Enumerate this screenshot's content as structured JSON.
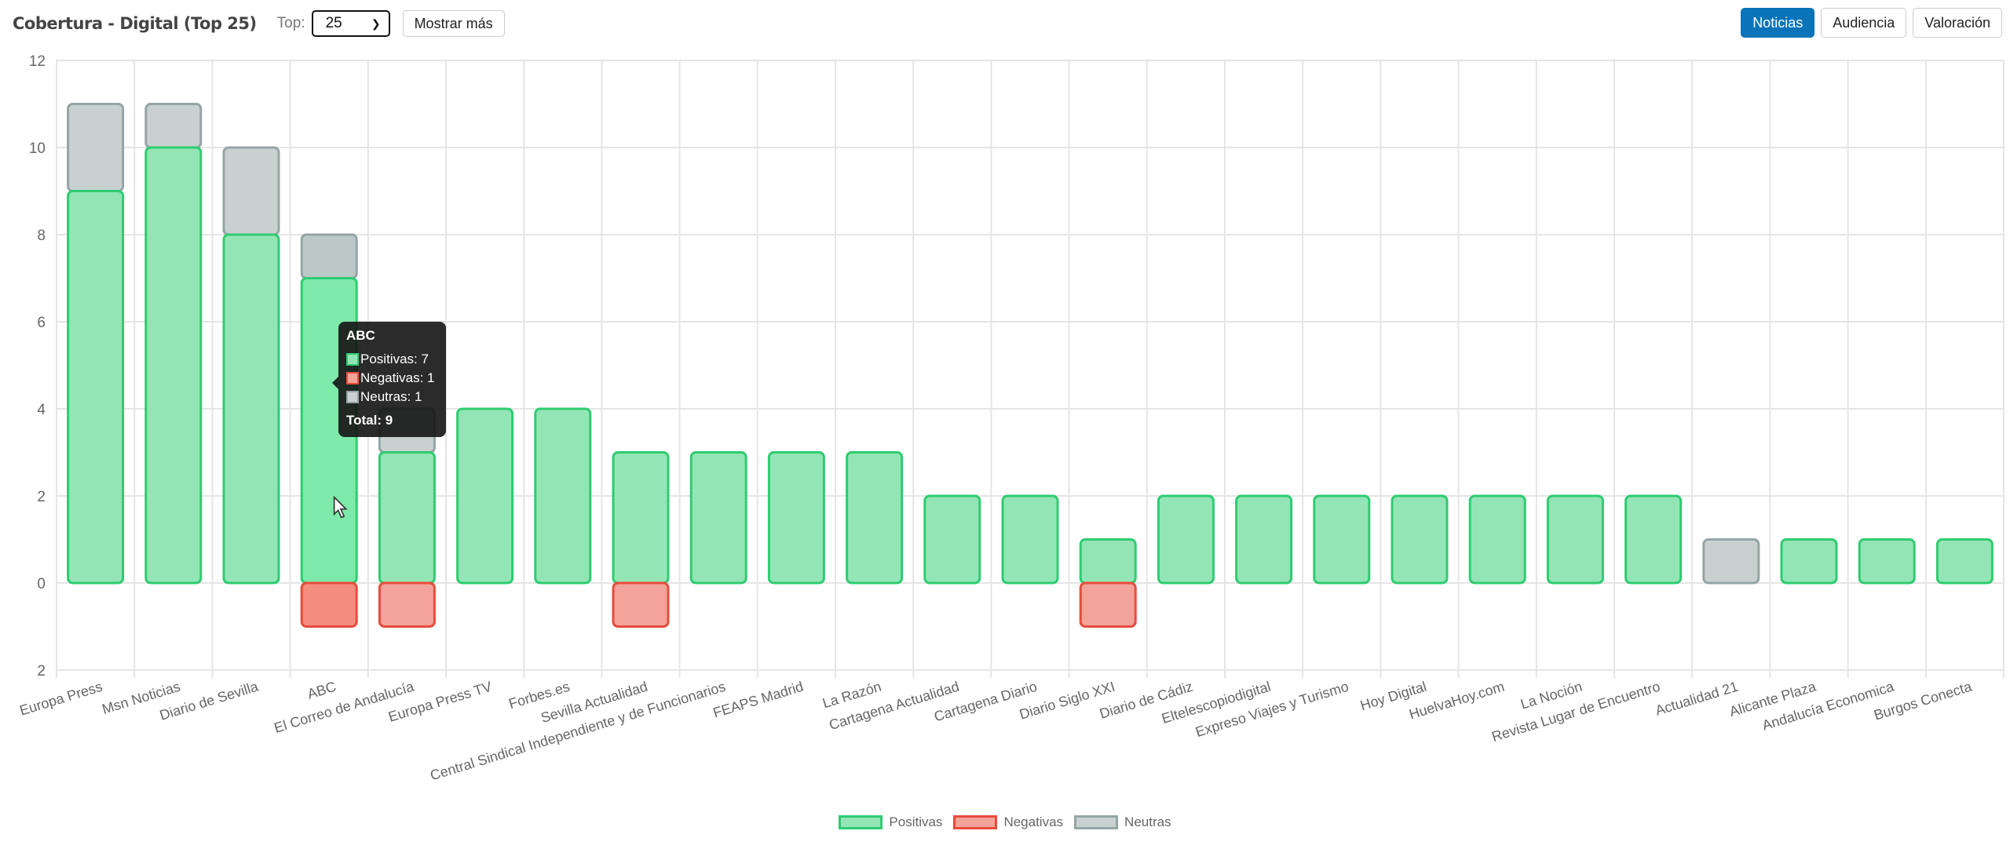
{
  "header": {
    "title": "Cobertura - Digital (Top 25)",
    "top_label": "Top:",
    "top_value": "25",
    "show_more": "Mostrar más"
  },
  "view_buttons": [
    {
      "label": "Noticias",
      "active": true
    },
    {
      "label": "Audiencia",
      "active": false
    },
    {
      "label": "Valoración",
      "active": false
    }
  ],
  "colors": {
    "pos_fill": "#94e5b5",
    "pos_stroke": "#2ecc71",
    "neg_fill": "#f2a39a",
    "neg_stroke": "#e74c3c",
    "neu_fill": "#c9d1d0",
    "neu_stroke": "#95a5a6"
  },
  "chart_data": {
    "type": "bar",
    "stacked": true,
    "title": "Cobertura - Digital (Top 25)",
    "ylim": [
      -2,
      12
    ],
    "yticks": [
      {
        "v": 12,
        "label": "12"
      },
      {
        "v": 10,
        "label": "10"
      },
      {
        "v": 8,
        "label": "8"
      },
      {
        "v": 6,
        "label": "6"
      },
      {
        "v": 4,
        "label": "4"
      },
      {
        "v": 2,
        "label": "2"
      },
      {
        "v": 0,
        "label": "0"
      },
      {
        "v": -2,
        "label": "2"
      }
    ],
    "grid": true,
    "legend_position": "bottom",
    "categories": [
      "Europa Press",
      "Msn Noticias",
      "Diario de Sevilla",
      "ABC",
      "El Correo de Andalucía",
      "Europa Press TV",
      "Forbes.es",
      "Sevilla Actualidad",
      "Central Sindical Independiente y de Funcionarios",
      "FEAPS Madrid",
      "La Razón",
      "Cartagena Actualidad",
      "Cartagena Diario",
      "Diario Siglo XXI",
      "Diario de Cádiz",
      "Eltelescopiodigital",
      "Expreso Viajes y Turismo",
      "Hoy Digital",
      "HuelvaHoy.com",
      "La Noción",
      "Revista Lugar de Encuentro",
      "Actualidad 21",
      "Alicante Plaza",
      "Andalucía Economica",
      "Burgos Conecta"
    ],
    "series": [
      {
        "name": "Positivas",
        "values": [
          9,
          10,
          8,
          7,
          3,
          4,
          4,
          3,
          3,
          3,
          3,
          2,
          2,
          1,
          2,
          2,
          2,
          2,
          2,
          2,
          2,
          0,
          1,
          1,
          1
        ]
      },
      {
        "name": "Negativas",
        "values": [
          0,
          0,
          0,
          1,
          1,
          0,
          0,
          1,
          0,
          0,
          0,
          0,
          0,
          1,
          0,
          0,
          0,
          0,
          0,
          0,
          0,
          0,
          0,
          0,
          0
        ]
      },
      {
        "name": "Neutras",
        "values": [
          2,
          1,
          2,
          1,
          1,
          0,
          0,
          0,
          0,
          0,
          0,
          0,
          0,
          0,
          0,
          0,
          0,
          0,
          0,
          0,
          0,
          1,
          0,
          0,
          0
        ]
      }
    ],
    "highlighted_index": 3
  },
  "tooltip": {
    "title": "ABC",
    "rows": [
      "Positivas: 7",
      "Negativas: 1",
      "Neutras: 1"
    ],
    "total": "Total: 9"
  }
}
